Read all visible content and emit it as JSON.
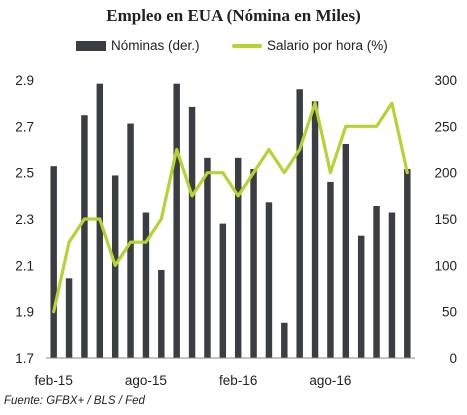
{
  "chart_data": {
    "type": "bar+line",
    "title": "Empleo en EUA (Nómina en Miles)",
    "xlabel": "",
    "ylabel_left": "",
    "ylabel_right": "",
    "x_ticks": [
      "feb-15",
      "ago-15",
      "feb-16",
      "ago-16"
    ],
    "series": [
      {
        "name": "Nóminas (der.)",
        "type": "bar",
        "axis": "right",
        "color": "#3a3d41",
        "values": [
          207,
          86,
          262,
          296,
          197,
          253,
          157,
          95,
          296,
          271,
          216,
          145,
          216,
          204,
          168,
          38,
          290,
          277,
          190,
          231,
          132,
          164,
          157,
          204
        ]
      },
      {
        "name": "Salario por hora (%)",
        "type": "line",
        "axis": "left",
        "color": "#b5d334",
        "values": [
          1.9,
          2.2,
          2.3,
          2.3,
          2.1,
          2.2,
          2.2,
          2.3,
          2.6,
          2.4,
          2.5,
          2.5,
          2.4,
          2.5,
          2.6,
          2.5,
          2.6,
          2.8,
          2.5,
          2.7,
          2.7,
          2.7,
          2.8,
          2.5
        ]
      }
    ],
    "ylim_left": [
      1.7,
      2.9
    ],
    "yticks_left": [
      "1.7",
      "1.9",
      "2.1",
      "2.3",
      "2.5",
      "2.7",
      "2.9"
    ],
    "ylim_right": [
      0,
      300
    ],
    "yticks_right": [
      "0",
      "50",
      "100",
      "150",
      "200",
      "250",
      "300"
    ],
    "grid": false,
    "legend_position": "top"
  },
  "source": "Fuente: GFBX+ / BLS / Fed"
}
